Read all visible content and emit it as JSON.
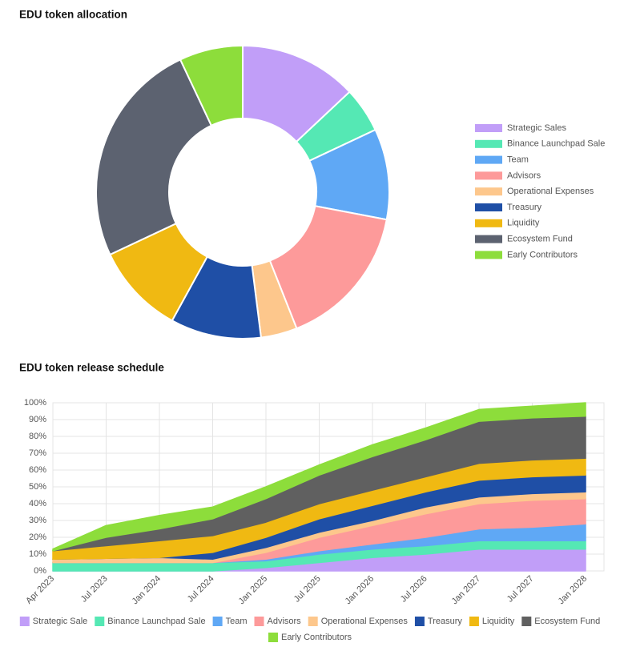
{
  "chart_data": [
    {
      "type": "donut",
      "title": "EDU token allocation",
      "categories": [
        "Strategic Sales",
        "Binance Launchpad Sale",
        "Team",
        "Advisors",
        "Operational Expenses",
        "Treasury",
        "Liquidity",
        "Ecosystem Fund",
        "Early Contributors"
      ],
      "values": [
        13,
        5,
        10,
        16,
        4,
        10,
        10,
        25,
        7
      ],
      "colors": [
        "#c19ef8",
        "#55e8b4",
        "#5fa8f5",
        "#fd9a9a",
        "#fdc78c",
        "#1f4fa6",
        "#f0b912",
        "#5c6270",
        "#8ddd3b"
      ],
      "legend": "right"
    },
    {
      "type": "stacked-area",
      "title": "EDU token release schedule",
      "categories": [
        "Apr 2023",
        "Jul 2023",
        "Jan 2024",
        "Jul 2024",
        "Jan 2025",
        "Jul 2025",
        "Jan 2026",
        "Jul 2026",
        "Jan 2027",
        "Jul 2027",
        "Jan 2028"
      ],
      "series": [
        {
          "name": "Strategic Sale",
          "color": "#c19ef8",
          "values": [
            0,
            0,
            0,
            0,
            2,
            5,
            8,
            10,
            13,
            13,
            13
          ]
        },
        {
          "name": "Binance Launchpad Sale",
          "color": "#55e8b4",
          "values": [
            5,
            5,
            5,
            5,
            4,
            5,
            5,
            5,
            5,
            5,
            5
          ]
        },
        {
          "name": "Team",
          "color": "#5fa8f5",
          "values": [
            0,
            0,
            0,
            0,
            1,
            2,
            3,
            5,
            7,
            8,
            10
          ]
        },
        {
          "name": "Advisors",
          "color": "#fd9a9a",
          "values": [
            0,
            0,
            0,
            0,
            4,
            8,
            11,
            14,
            15,
            16,
            15
          ]
        },
        {
          "name": "Operational Expenses",
          "color": "#fdc78c",
          "values": [
            2,
            2.5,
            3,
            2,
            3,
            3,
            3,
            4,
            4,
            4,
            4
          ]
        },
        {
          "name": "Treasury",
          "color": "#1f4fa6",
          "values": [
            0,
            0,
            0,
            4,
            6,
            8,
            9,
            9,
            10,
            10,
            10
          ]
        },
        {
          "name": "Liquidity",
          "color": "#f0b912",
          "values": [
            5,
            7.5,
            10,
            10,
            9,
            9,
            9,
            9,
            10,
            10,
            10
          ]
        },
        {
          "name": "Ecosystem Fund",
          "color": "#606060",
          "values": [
            0,
            5,
            7,
            10,
            14,
            17,
            20,
            22,
            25,
            25,
            25
          ]
        },
        {
          "name": "Early Contributors",
          "color": "#8ddd3b",
          "values": [
            1,
            7,
            8,
            7,
            7,
            6,
            7,
            7,
            7,
            7,
            8
          ]
        }
      ],
      "ylim": [
        0,
        100
      ],
      "yticks": [
        {
          "value": 0,
          "label": "0%"
        },
        {
          "value": 10,
          "label": "10%"
        },
        {
          "value": 20,
          "label": "20%"
        },
        {
          "value": 30,
          "label": "30%"
        },
        {
          "value": 40,
          "label": "40%"
        },
        {
          "value": 50,
          "label": "50%"
        },
        {
          "value": 60,
          "label": "60%"
        },
        {
          "value": 70,
          "label": "70%"
        },
        {
          "value": 80,
          "label": "80%"
        },
        {
          "value": 90,
          "label": "90%"
        },
        {
          "value": 100,
          "label": "100%"
        }
      ],
      "grid": true,
      "legend": "bottom"
    }
  ]
}
